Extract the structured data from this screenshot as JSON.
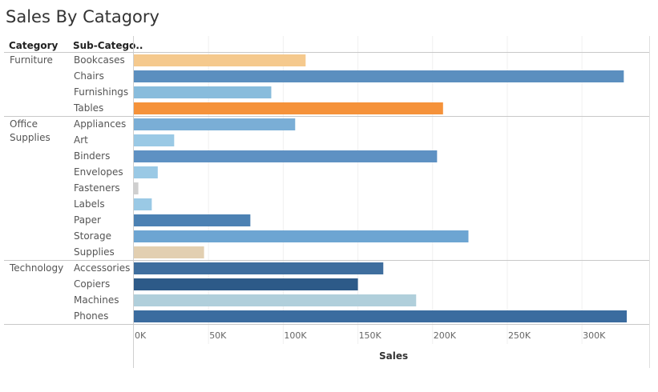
{
  "title": "Sales By Catagory",
  "headers": {
    "category": "Category",
    "subcategory": "Sub-Catego.."
  },
  "chart_data": {
    "type": "bar",
    "orientation": "horizontal",
    "xlabel": "Sales",
    "xlim": [
      0,
      345000
    ],
    "ticks": [
      "0K",
      "50K",
      "100K",
      "150K",
      "200K",
      "250K",
      "300K"
    ],
    "tick_values": [
      0,
      50000,
      100000,
      150000,
      200000,
      250000,
      300000
    ],
    "grid": true,
    "groups": [
      {
        "category": "Furniture",
        "items": [
          {
            "name": "Bookcases",
            "value": 115000,
            "color": "#f5c98d"
          },
          {
            "name": "Chairs",
            "value": 328000,
            "color": "#5b8fbf"
          },
          {
            "name": "Furnishings",
            "value": 92000,
            "color": "#88bcdc"
          },
          {
            "name": "Tables",
            "value": 207000,
            "color": "#f5923a"
          }
        ]
      },
      {
        "category": "Office Supplies",
        "items": [
          {
            "name": "Appliances",
            "value": 108000,
            "color": "#7aaed6"
          },
          {
            "name": "Art",
            "value": 27000,
            "color": "#9ac9e5"
          },
          {
            "name": "Binders",
            "value": 203000,
            "color": "#5e91c3"
          },
          {
            "name": "Envelopes",
            "value": 16000,
            "color": "#9ac9e5"
          },
          {
            "name": "Fasteners",
            "value": 3000,
            "color": "#cfcfcf"
          },
          {
            "name": "Labels",
            "value": 12000,
            "color": "#9ac9e5"
          },
          {
            "name": "Paper",
            "value": 78000,
            "color": "#4c81b3"
          },
          {
            "name": "Storage",
            "value": 224000,
            "color": "#6da5d2"
          },
          {
            "name": "Supplies",
            "value": 47000,
            "color": "#e2cfb1"
          }
        ]
      },
      {
        "category": "Technology",
        "items": [
          {
            "name": "Accessories",
            "value": 167000,
            "color": "#3f6e9e"
          },
          {
            "name": "Copiers",
            "value": 150000,
            "color": "#2d5a88"
          },
          {
            "name": "Machines",
            "value": 189000,
            "color": "#b0cfdb"
          },
          {
            "name": "Phones",
            "value": 330000,
            "color": "#3b6c9f"
          }
        ]
      }
    ]
  }
}
